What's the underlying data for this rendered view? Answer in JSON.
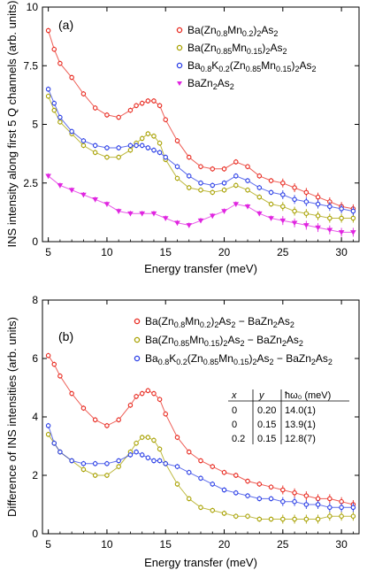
{
  "chart_data": [
    {
      "type": "scatter",
      "panel_label": "(a)",
      "xlabel": "Energy transfer (meV)",
      "ylabel": "INS intensity along first 5 Q channels (arb. units)",
      "xlim": [
        4.5,
        31.5
      ],
      "ylim": [
        0,
        10
      ],
      "xticks": [
        "5",
        "10",
        "15",
        "20",
        "25",
        "30"
      ],
      "yticks": [
        "0",
        "2.5",
        "5",
        "7.5",
        "10"
      ],
      "legend_position": "top-right",
      "series": [
        {
          "name": "Ba(Zn0.8Mn0.2)2As2",
          "color": "#e8281e",
          "marker": "circle",
          "x": [
            5,
            5.5,
            6,
            7,
            8,
            9,
            10,
            11,
            12,
            12.5,
            13,
            13.5,
            14,
            14.5,
            15,
            16,
            17,
            18,
            19,
            20,
            21,
            22,
            23,
            24,
            25,
            26,
            27,
            28,
            29,
            30,
            31
          ],
          "y": [
            9.0,
            8.2,
            7.6,
            7.0,
            6.3,
            5.7,
            5.4,
            5.3,
            5.6,
            5.8,
            5.9,
            6.0,
            6.0,
            5.8,
            5.2,
            4.3,
            3.6,
            3.2,
            3.1,
            3.1,
            3.4,
            3.2,
            2.8,
            2.6,
            2.5,
            2.3,
            2.1,
            1.9,
            1.7,
            1.5,
            1.4
          ]
        },
        {
          "name": "Ba(Zn0.85Mn0.15)2As2",
          "color": "#a8a100",
          "marker": "circle",
          "x": [
            5,
            5.5,
            6,
            7,
            8,
            9,
            10,
            11,
            12,
            12.5,
            13,
            13.5,
            14,
            14.5,
            15,
            16,
            17,
            18,
            19,
            20,
            21,
            22,
            23,
            24,
            25,
            26,
            27,
            28,
            29,
            30,
            31
          ],
          "y": [
            6.2,
            5.6,
            5.1,
            4.6,
            4.1,
            3.8,
            3.6,
            3.6,
            3.9,
            4.2,
            4.4,
            4.6,
            4.5,
            4.2,
            3.5,
            2.7,
            2.3,
            2.2,
            2.1,
            2.2,
            2.4,
            2.2,
            1.9,
            1.6,
            1.5,
            1.3,
            1.2,
            1.1,
            1.0,
            1.0,
            1.0
          ]
        },
        {
          "name": "Ba0.8K0.2(Zn0.85Mn0.15)2As2",
          "color": "#2a3ee6",
          "marker": "circle",
          "x": [
            5,
            5.5,
            6,
            7,
            8,
            9,
            10,
            11,
            12,
            12.5,
            13,
            13.5,
            14,
            14.5,
            15,
            16,
            17,
            18,
            19,
            20,
            21,
            22,
            23,
            24,
            25,
            26,
            27,
            28,
            29,
            30,
            31
          ],
          "y": [
            6.5,
            5.9,
            5.3,
            4.7,
            4.3,
            4.1,
            4.0,
            4.0,
            4.1,
            4.1,
            4.1,
            4.0,
            3.9,
            3.8,
            3.6,
            3.2,
            2.8,
            2.5,
            2.4,
            2.5,
            2.8,
            2.6,
            2.3,
            2.1,
            2.0,
            1.8,
            1.7,
            1.6,
            1.5,
            1.4,
            1.3
          ]
        },
        {
          "name": "BaZn2As2",
          "color": "#e025e0",
          "marker": "triangle-down",
          "x": [
            5,
            6,
            7,
            8,
            9,
            10,
            11,
            12,
            13,
            14,
            15,
            16,
            17,
            18,
            19,
            20,
            21,
            22,
            23,
            24,
            25,
            26,
            27,
            28,
            29,
            30,
            31
          ],
          "y": [
            2.8,
            2.4,
            2.2,
            2.0,
            1.8,
            1.6,
            1.3,
            1.2,
            1.2,
            1.2,
            1.0,
            0.8,
            0.7,
            0.9,
            1.1,
            1.3,
            1.6,
            1.5,
            1.2,
            1.0,
            0.9,
            0.8,
            0.7,
            0.6,
            0.5,
            0.4,
            0.4
          ]
        }
      ]
    },
    {
      "type": "scatter",
      "panel_label": "(b)",
      "xlabel": "Energy transfer (meV)",
      "ylabel": "Difference of INS intensities (arb. units)",
      "xlim": [
        4.5,
        31.5
      ],
      "ylim": [
        0,
        8
      ],
      "xticks": [
        "5",
        "10",
        "15",
        "20",
        "25",
        "30"
      ],
      "yticks": [
        "0",
        "2",
        "4",
        "6",
        "8"
      ],
      "legend_position": "top-right",
      "series": [
        {
          "name": "Ba(Zn0.8Mn0.2)2As2 − BaZn2As2",
          "color": "#e8281e",
          "marker": "circle",
          "x": [
            5,
            5.5,
            6,
            7,
            8,
            9,
            10,
            11,
            12,
            12.5,
            13,
            13.5,
            14,
            14.5,
            15,
            16,
            17,
            18,
            19,
            20,
            21,
            22,
            23,
            24,
            25,
            26,
            27,
            28,
            29,
            30,
            31
          ],
          "y": [
            6.1,
            5.8,
            5.4,
            4.8,
            4.3,
            3.9,
            3.7,
            3.9,
            4.4,
            4.7,
            4.8,
            4.9,
            4.8,
            4.6,
            4.1,
            3.3,
            2.8,
            2.5,
            2.3,
            2.1,
            2.0,
            1.8,
            1.7,
            1.6,
            1.5,
            1.4,
            1.3,
            1.2,
            1.2,
            1.1,
            1.0
          ]
        },
        {
          "name": "Ba(Zn0.85Mn0.15)2As2 − BaZn2As2",
          "color": "#a8a100",
          "marker": "circle",
          "x": [
            5,
            5.5,
            6,
            7,
            8,
            9,
            10,
            11,
            12,
            12.5,
            13,
            13.5,
            14,
            14.5,
            15,
            16,
            17,
            18,
            19,
            20,
            21,
            22,
            23,
            24,
            25,
            26,
            27,
            28,
            29,
            30,
            31
          ],
          "y": [
            3.4,
            3.1,
            2.8,
            2.5,
            2.2,
            2.0,
            2.0,
            2.3,
            2.8,
            3.1,
            3.3,
            3.3,
            3.2,
            2.9,
            2.4,
            1.7,
            1.2,
            0.9,
            0.8,
            0.7,
            0.6,
            0.6,
            0.5,
            0.5,
            0.5,
            0.5,
            0.5,
            0.5,
            0.6,
            0.6,
            0.6
          ]
        },
        {
          "name": "Ba0.8K0.2(Zn0.85Mn0.15)2As2 − BaZn2As2",
          "color": "#2a3ee6",
          "marker": "circle",
          "x": [
            5,
            5.5,
            6,
            7,
            8,
            9,
            10,
            11,
            12,
            12.5,
            13,
            13.5,
            14,
            14.5,
            15,
            16,
            17,
            18,
            19,
            20,
            21,
            22,
            23,
            24,
            25,
            26,
            27,
            28,
            29,
            30,
            31
          ],
          "y": [
            3.7,
            3.1,
            2.8,
            2.5,
            2.4,
            2.4,
            2.4,
            2.5,
            2.7,
            2.8,
            2.7,
            2.6,
            2.5,
            2.5,
            2.4,
            2.3,
            2.1,
            1.9,
            1.7,
            1.5,
            1.4,
            1.3,
            1.2,
            1.2,
            1.1,
            1.1,
            1.0,
            1.0,
            0.9,
            0.9,
            0.9
          ]
        }
      ],
      "table": {
        "headers": [
          "x",
          "y",
          "ħω₀ (meV)"
        ],
        "rows": [
          [
            "0",
            "0.20",
            "14.0(1)"
          ],
          [
            "0",
            "0.15",
            "13.9(1)"
          ],
          [
            "0.2",
            "0.15",
            "12.8(7)"
          ]
        ]
      }
    }
  ]
}
